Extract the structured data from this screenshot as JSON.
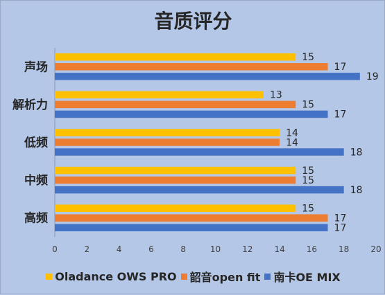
{
  "chart_data": {
    "type": "bar",
    "orientation": "horizontal",
    "title": "音质评分",
    "categories": [
      "声场",
      "解析力",
      "低频",
      "中频",
      "高频"
    ],
    "series": [
      {
        "name": "Oladance OWS PRO",
        "color": "#ffc000",
        "values": [
          15,
          13,
          14,
          15,
          15
        ]
      },
      {
        "name": "韶音open fit",
        "color": "#ed7d31",
        "values": [
          17,
          15,
          14,
          15,
          17
        ]
      },
      {
        "name": "南卡OE MIX",
        "color": "#4472c4",
        "values": [
          19,
          17,
          18,
          18,
          17
        ]
      }
    ],
    "xlim": [
      0,
      20
    ],
    "xticks": [
      0,
      2,
      4,
      6,
      8,
      10,
      12,
      14,
      16,
      18,
      20
    ],
    "grid": false,
    "legend_position": "bottom",
    "data_labels": true
  }
}
